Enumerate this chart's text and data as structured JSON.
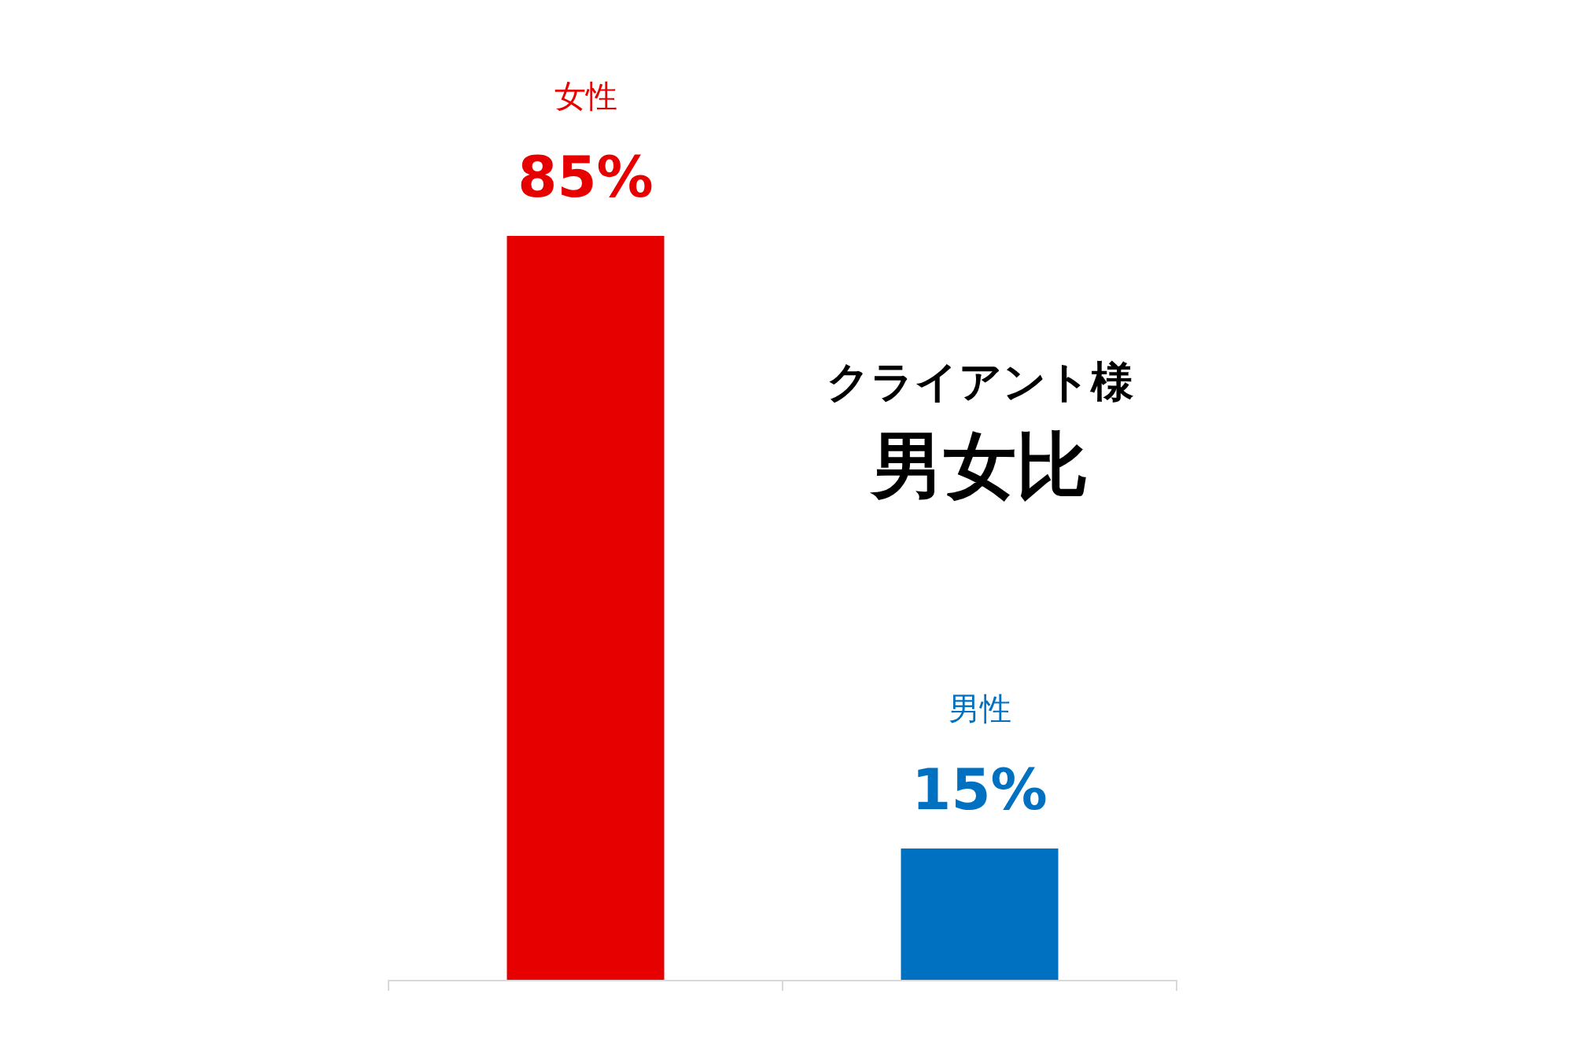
{
  "chart_data": {
    "type": "bar",
    "title": "クライアント様",
    "subtitle": "男女比",
    "categories": [
      null,
      null
    ],
    "values": [
      85,
      15
    ],
    "colors": [
      "#e60000",
      "#0070c0"
    ],
    "value_labels": [
      "85%",
      "15%"
    ],
    "annotations": [
      "女性",
      "男性"
    ]
  }
}
